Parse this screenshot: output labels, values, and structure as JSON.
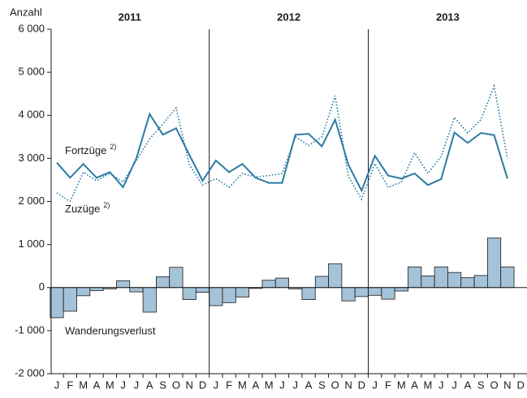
{
  "chart_data": {
    "type": "line",
    "y_label": "Anzahl",
    "years": [
      "2011",
      "2012",
      "2013"
    ],
    "categories": [
      "J",
      "F",
      "M",
      "A",
      "M",
      "J",
      "J",
      "A",
      "S",
      "O",
      "N",
      "D",
      "J",
      "F",
      "M",
      "A",
      "M",
      "J",
      "J",
      "A",
      "S",
      "O",
      "N",
      "D",
      "J",
      "F",
      "M",
      "A",
      "M",
      "J",
      "J",
      "A",
      "S",
      "O",
      "N",
      "D"
    ],
    "ylim": [
      -2000,
      6000
    ],
    "yticks": [
      {
        "value": -2000,
        "label": "-2 000"
      },
      {
        "value": -1000,
        "label": "-1 000"
      },
      0,
      {
        "value": 1000,
        "label": "1 000"
      },
      {
        "value": 2000,
        "label": "2 000"
      },
      {
        "value": 3000,
        "label": "3 000"
      },
      {
        "value": 4000,
        "label": "4 000"
      },
      {
        "value": 5000,
        "label": "5 000"
      },
      {
        "value": 6000,
        "label": "6 000"
      }
    ],
    "footnote_mark": "2)",
    "series": [
      {
        "name": "Wanderungsverlust",
        "type": "bar",
        "color": "#a4c2d8",
        "values": [
          -700,
          -550,
          -190,
          -70,
          -30,
          160,
          -100,
          -570,
          250,
          470,
          -280,
          -110,
          -420,
          -350,
          -220,
          -20,
          170,
          220,
          -30,
          -280,
          260,
          550,
          -310,
          -210,
          -180,
          -270,
          -80,
          480,
          270,
          480,
          350,
          230,
          280,
          1150,
          480,
          null
        ]
      },
      {
        "name": "Fortzüge",
        "type": "line",
        "dashed": false,
        "color": "#2a7ba3",
        "values": [
          2900,
          2550,
          2870,
          2550,
          2680,
          2330,
          3000,
          4030,
          3550,
          3700,
          3080,
          2480,
          2950,
          2680,
          2870,
          2550,
          2430,
          2430,
          3550,
          3570,
          3280,
          3900,
          2850,
          2250,
          3060,
          2600,
          2530,
          2650,
          2380,
          2520,
          3600,
          3360,
          3590,
          3540,
          2530,
          null
        ]
      },
      {
        "name": "Zuzüge",
        "type": "line",
        "dashed": true,
        "color": "#2a7ba3",
        "values": [
          2200,
          2000,
          2680,
          2480,
          2650,
          2450,
          2950,
          3450,
          3800,
          4170,
          2850,
          2380,
          2530,
          2330,
          2650,
          2570,
          2600,
          2650,
          3500,
          3300,
          3500,
          4450,
          2580,
          2050,
          2880,
          2330,
          2450,
          3130,
          2650,
          3050,
          3950,
          3590,
          3900,
          4680,
          3000,
          null
        ]
      }
    ]
  }
}
